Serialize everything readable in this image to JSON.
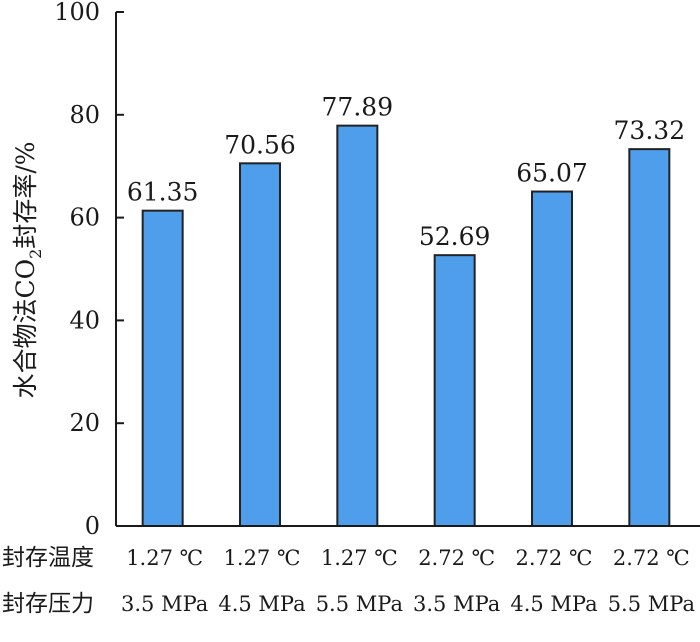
{
  "chart_data": {
    "type": "bar",
    "ylabel": {
      "before": "水合物法CO",
      "subscript": "2",
      "after": "封存率/%"
    },
    "ylim": [
      0,
      100
    ],
    "yticks": [
      "0",
      "20",
      "40",
      "60",
      "80",
      "100"
    ],
    "row_labels": [
      "封存温度",
      "封存压力"
    ],
    "categories": [
      {
        "temperature": "1.27 ℃",
        "pressure": "3.5 MPa"
      },
      {
        "temperature": "1.27 ℃",
        "pressure": "4.5 MPa"
      },
      {
        "temperature": "1.27 ℃",
        "pressure": "5.5 MPa"
      },
      {
        "temperature": "2.72 ℃",
        "pressure": "3.5 MPa"
      },
      {
        "temperature": "2.72 ℃",
        "pressure": "4.5 MPa"
      },
      {
        "temperature": "2.72 ℃",
        "pressure": "5.5 MPa"
      }
    ],
    "values": [
      61.35,
      70.56,
      77.89,
      52.69,
      65.07,
      73.32
    ],
    "value_labels": [
      "61.35",
      "70.56",
      "77.89",
      "52.69",
      "65.07",
      "73.32"
    ],
    "bar_color": "#4f9eeb",
    "bar_edge_color": "#222222",
    "grid": false,
    "legend": "none"
  }
}
